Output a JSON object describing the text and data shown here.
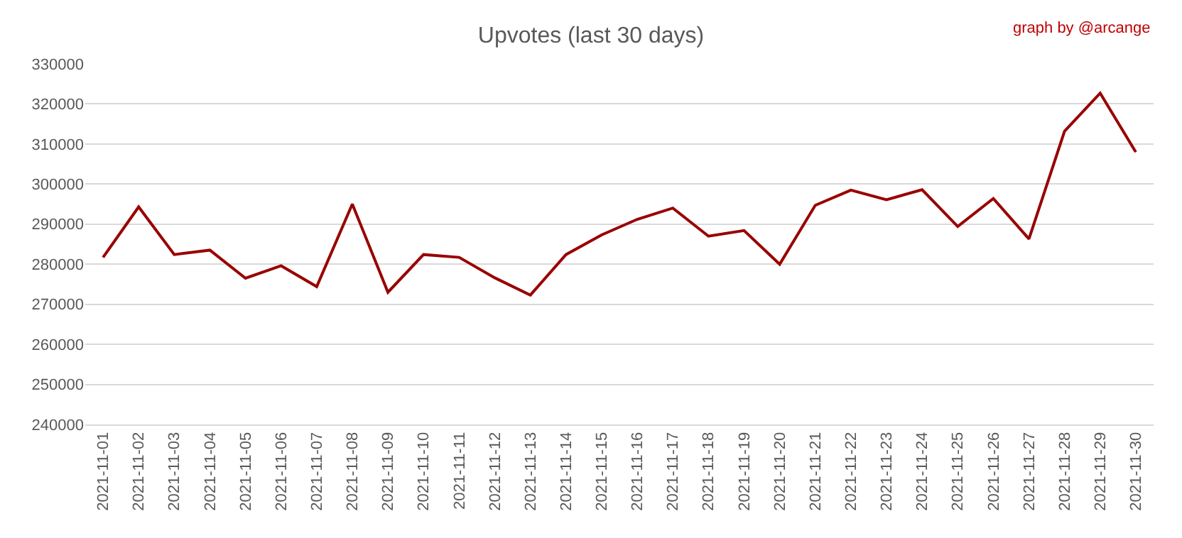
{
  "chart_data": {
    "type": "line",
    "title": "Upvotes (last 30 days)",
    "annotations": [
      "graph by @arcange"
    ],
    "categories": [
      "2021-11-01",
      "2021-11-02",
      "2021-11-03",
      "2021-11-04",
      "2021-11-05",
      "2021-11-06",
      "2021-11-07",
      "2021-11-08",
      "2021-11-09",
      "2021-11-10",
      "2021-11-11",
      "2021-11-12",
      "2021-11-13",
      "2021-11-14",
      "2021-11-15",
      "2021-11-16",
      "2021-11-17",
      "2021-11-18",
      "2021-11-19",
      "2021-11-20",
      "2021-11-21",
      "2021-11-22",
      "2021-11-23",
      "2021-11-24",
      "2021-11-25",
      "2021-11-26",
      "2021-11-27",
      "2021-11-28",
      "2021-11-29",
      "2021-11-30"
    ],
    "series": [
      {
        "color": "#990000",
        "values": [
          281700,
          294300,
          282400,
          283500,
          276500,
          279600,
          274400,
          295000,
          273000,
          282400,
          281700,
          276600,
          272300,
          282400,
          287300,
          291200,
          294000,
          287000,
          288400,
          280000,
          294700,
          298500,
          296100,
          298600,
          289400,
          296400,
          286300,
          313200,
          322700,
          308000
        ]
      }
    ],
    "ylim": [
      240000,
      330000
    ],
    "yticks": [
      240000,
      250000,
      260000,
      270000,
      280000,
      290000,
      300000,
      310000,
      320000,
      330000
    ],
    "grid": "y",
    "marker": "none",
    "line_style": "solid"
  }
}
